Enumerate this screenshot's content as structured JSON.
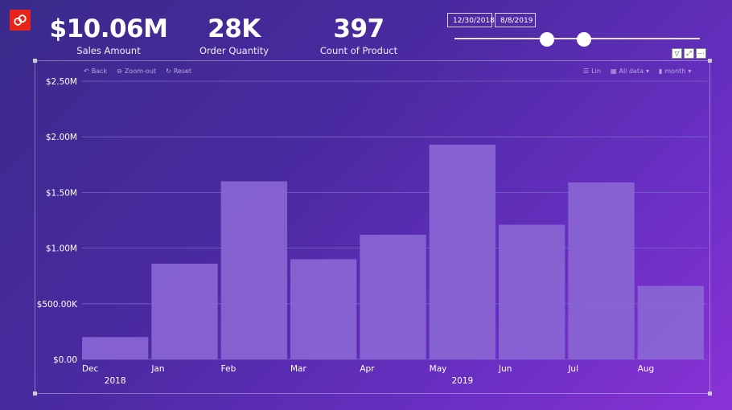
{
  "kpis": [
    {
      "value": "$10.06M",
      "label": "Sales Amount"
    },
    {
      "value": "28K",
      "label": "Order Quantity"
    },
    {
      "value": "397",
      "label": "Count of Product"
    }
  ],
  "date_slicer": {
    "start": "12/30/2018",
    "end": "8/8/2019"
  },
  "toolbar_left": {
    "back": "Back",
    "zoom_out": "Zoom-out",
    "reset": "Reset"
  },
  "toolbar_right": {
    "lin": "Lin",
    "all_data": "All data",
    "month": "month"
  },
  "colors": {
    "bar": "#8a66d4",
    "grid": "#7b64c8"
  },
  "chart_data": {
    "type": "bar",
    "categories": [
      "Dec",
      "Jan",
      "Feb",
      "Mar",
      "Apr",
      "May",
      "Jun",
      "Jul",
      "Aug"
    ],
    "years": [
      {
        "label": "2018",
        "under": "Dec"
      },
      {
        "label": "2019",
        "under": "May"
      }
    ],
    "values": [
      200000,
      860000,
      1600000,
      900000,
      1120000,
      1930000,
      1210000,
      1590000,
      660000
    ],
    "ylim": [
      0,
      2500000
    ],
    "yticks": [
      {
        "value": 0,
        "label": "$0.00"
      },
      {
        "value": 500000,
        "label": "$500.00K"
      },
      {
        "value": 1000000,
        "label": "$1.00M"
      },
      {
        "value": 1500000,
        "label": "$1.50M"
      },
      {
        "value": 2000000,
        "label": "$2.00M"
      },
      {
        "value": 2500000,
        "label": "$2.50M"
      }
    ],
    "grid": true,
    "xlabel": "",
    "ylabel": ""
  }
}
